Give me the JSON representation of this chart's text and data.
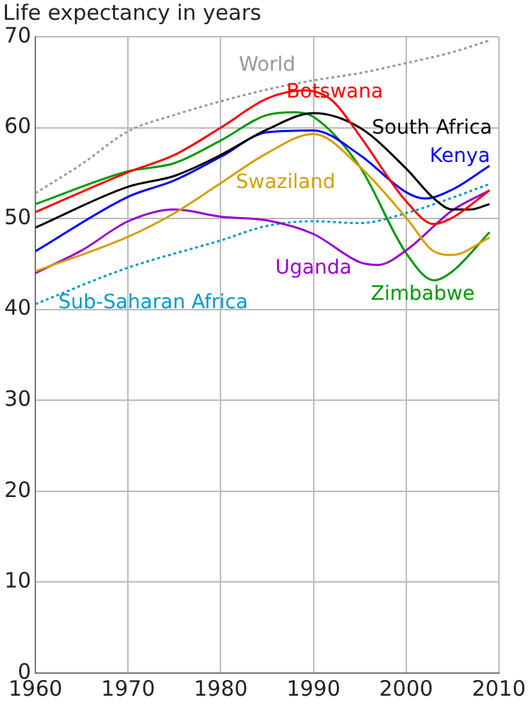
{
  "chart_data": {
    "type": "line",
    "ylabel": "Life expectancy in years",
    "xlim": [
      1960,
      2010
    ],
    "ylim": [
      0,
      70
    ],
    "xticks": [
      1960,
      1970,
      1980,
      1990,
      2000,
      2010
    ],
    "yticks": [
      0,
      10,
      20,
      30,
      40,
      50,
      60,
      70
    ],
    "grid": true,
    "legend": false,
    "marker": "none",
    "series": [
      {
        "name": "World",
        "color": "#999999",
        "line_style": "dotted",
        "x": [
          1960,
          1965,
          1970,
          1975,
          1980,
          1985,
          1990,
          1995,
          2000,
          2005,
          2009
        ],
        "values": [
          52.8,
          56,
          59.6,
          61.4,
          62.9,
          64.2,
          65.2,
          66.0,
          67.1,
          68.3,
          69.6
        ]
      },
      {
        "name": "Botswana",
        "color": "#ff0000",
        "line_style": "solid",
        "x": [
          1960,
          1970,
          1975,
          1980,
          1985,
          1989,
          1992,
          1995,
          2000,
          2003,
          2005,
          2009
        ],
        "values": [
          50.7,
          55.1,
          57.0,
          60.0,
          63.2,
          64.1,
          63.0,
          59.1,
          51.9,
          49.4,
          50.1,
          53.1
        ]
      },
      {
        "name": "South Africa",
        "color": "#000000",
        "line_style": "solid",
        "x": [
          1960,
          1970,
          1975,
          1980,
          1985,
          1990,
          1995,
          2000,
          2003,
          2005,
          2007,
          2009
        ],
        "values": [
          49.0,
          53.5,
          54.7,
          57.0,
          59.8,
          61.6,
          60.0,
          55.5,
          52.2,
          51.0,
          51.0,
          51.6
        ]
      },
      {
        "name": "Kenya",
        "color": "#0000ff",
        "line_style": "solid",
        "x": [
          1960,
          1970,
          1975,
          1980,
          1985,
          1990,
          1995,
          2000,
          2002,
          2005,
          2009
        ],
        "values": [
          46.4,
          52.4,
          54.2,
          56.8,
          59.5,
          59.7,
          57.0,
          52.9,
          52.2,
          53.2,
          55.8
        ]
      },
      {
        "name": "Swaziland",
        "color": "#d4a000",
        "line_style": "solid",
        "x": [
          1960,
          1970,
          1975,
          1980,
          1985,
          1990,
          1995,
          2000,
          2003,
          2005,
          2009
        ],
        "values": [
          44.2,
          48.0,
          50.6,
          53.9,
          57.2,
          59.3,
          55.7,
          50.1,
          46.4,
          46.0,
          47.9
        ]
      },
      {
        "name": "Uganda",
        "color": "#9900cc",
        "line_style": "solid",
        "x": [
          1960,
          1965,
          1970,
          1975,
          1980,
          1985,
          1990,
          1995,
          1997,
          2000,
          2005,
          2009
        ],
        "values": [
          44.0,
          46.5,
          49.7,
          51.0,
          50.2,
          49.8,
          48.3,
          45.2,
          44.9,
          46.5,
          50.9,
          53.1
        ]
      },
      {
        "name": "Zimbabwe",
        "color": "#009900",
        "line_style": "solid",
        "x": [
          1960,
          1970,
          1975,
          1980,
          1985,
          1988,
          1990,
          1995,
          2000,
          2003,
          2005,
          2009
        ],
        "values": [
          51.6,
          55.2,
          56.1,
          58.6,
          61.4,
          61.7,
          61.2,
          55.7,
          46.2,
          43.2,
          44.2,
          48.5
        ]
      },
      {
        "name": "Sub-Saharan Africa",
        "color": "#0099cc",
        "line_style": "dotted",
        "x": [
          1960,
          1970,
          1980,
          1985,
          1990,
          1995,
          2000,
          2005,
          2009
        ],
        "values": [
          40.6,
          44.6,
          47.6,
          49.2,
          49.7,
          49.5,
          50.6,
          52.3,
          53.8
        ]
      }
    ]
  }
}
